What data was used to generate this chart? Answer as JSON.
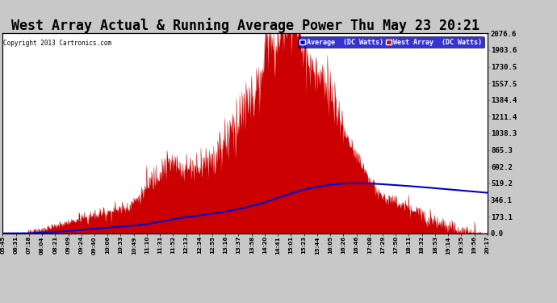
{
  "title": "West Array Actual & Running Average Power Thu May 23 20:21",
  "copyright": "Copyright 2013 Cartronics.com",
  "ylabel_right_values": [
    2076.6,
    1903.6,
    1730.5,
    1557.5,
    1384.4,
    1211.4,
    1038.3,
    865.3,
    692.2,
    519.2,
    346.1,
    173.1,
    0.0
  ],
  "y_max": 2076.6,
  "y_min": 0.0,
  "bg_color": "#c8c8c8",
  "plot_bg_color": "#ffffff",
  "grid_color": "#aaaaaa",
  "bar_color": "#cc0000",
  "avg_color": "#0000cc",
  "title_fontsize": 12,
  "legend_avg": "Average  (DC Watts)",
  "legend_west": "West Array  (DC Watts)",
  "tick_labels": [
    "05:45",
    "06:31",
    "07:18",
    "08:04",
    "08:21",
    "09:09",
    "09:24",
    "09:40",
    "10:06",
    "10:33",
    "10:49",
    "11:10",
    "11:31",
    "11:52",
    "12:13",
    "12:34",
    "12:55",
    "13:16",
    "13:37",
    "13:58",
    "14:20",
    "14:41",
    "15:01",
    "15:23",
    "15:44",
    "16:05",
    "16:26",
    "16:46",
    "17:08",
    "17:29",
    "17:50",
    "18:11",
    "18:32",
    "18:53",
    "19:14",
    "19:35",
    "19:56",
    "20:17"
  ]
}
